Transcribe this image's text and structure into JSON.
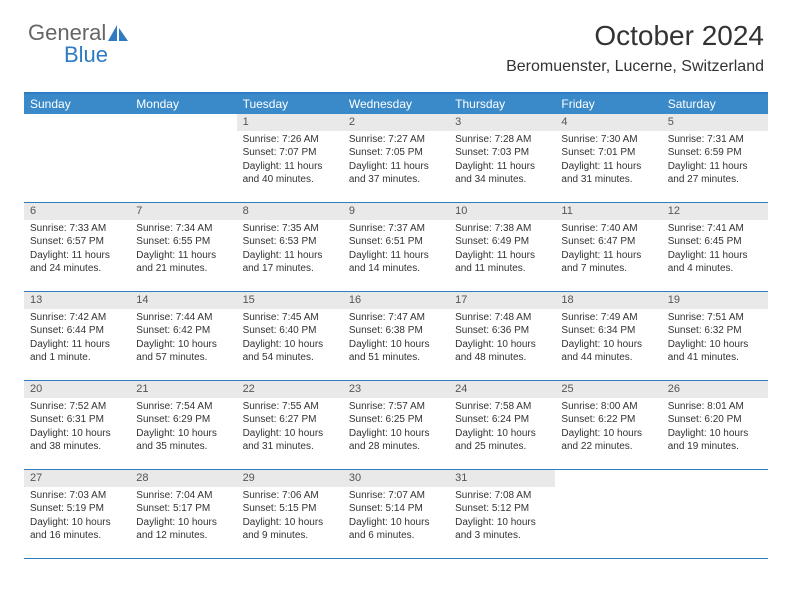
{
  "logo": {
    "text_general": "General",
    "text_blue": "Blue",
    "icon_color": "#2e7bc4"
  },
  "title": "October 2024",
  "location": "Beromuenster, Lucerne, Switzerland",
  "colors": {
    "header_bar": "#3a8ac9",
    "border": "#2e7bc4",
    "daynum_bg": "#e9e9e9",
    "page_bg": "#ffffff",
    "text": "#333333"
  },
  "weekdays": [
    "Sunday",
    "Monday",
    "Tuesday",
    "Wednesday",
    "Thursday",
    "Friday",
    "Saturday"
  ],
  "weeks": [
    [
      null,
      null,
      {
        "num": "1",
        "sunrise": "7:26 AM",
        "sunset": "7:07 PM",
        "daylight": "11 hours and 40 minutes."
      },
      {
        "num": "2",
        "sunrise": "7:27 AM",
        "sunset": "7:05 PM",
        "daylight": "11 hours and 37 minutes."
      },
      {
        "num": "3",
        "sunrise": "7:28 AM",
        "sunset": "7:03 PM",
        "daylight": "11 hours and 34 minutes."
      },
      {
        "num": "4",
        "sunrise": "7:30 AM",
        "sunset": "7:01 PM",
        "daylight": "11 hours and 31 minutes."
      },
      {
        "num": "5",
        "sunrise": "7:31 AM",
        "sunset": "6:59 PM",
        "daylight": "11 hours and 27 minutes."
      }
    ],
    [
      {
        "num": "6",
        "sunrise": "7:33 AM",
        "sunset": "6:57 PM",
        "daylight": "11 hours and 24 minutes."
      },
      {
        "num": "7",
        "sunrise": "7:34 AM",
        "sunset": "6:55 PM",
        "daylight": "11 hours and 21 minutes."
      },
      {
        "num": "8",
        "sunrise": "7:35 AM",
        "sunset": "6:53 PM",
        "daylight": "11 hours and 17 minutes."
      },
      {
        "num": "9",
        "sunrise": "7:37 AM",
        "sunset": "6:51 PM",
        "daylight": "11 hours and 14 minutes."
      },
      {
        "num": "10",
        "sunrise": "7:38 AM",
        "sunset": "6:49 PM",
        "daylight": "11 hours and 11 minutes."
      },
      {
        "num": "11",
        "sunrise": "7:40 AM",
        "sunset": "6:47 PM",
        "daylight": "11 hours and 7 minutes."
      },
      {
        "num": "12",
        "sunrise": "7:41 AM",
        "sunset": "6:45 PM",
        "daylight": "11 hours and 4 minutes."
      }
    ],
    [
      {
        "num": "13",
        "sunrise": "7:42 AM",
        "sunset": "6:44 PM",
        "daylight": "11 hours and 1 minute."
      },
      {
        "num": "14",
        "sunrise": "7:44 AM",
        "sunset": "6:42 PM",
        "daylight": "10 hours and 57 minutes."
      },
      {
        "num": "15",
        "sunrise": "7:45 AM",
        "sunset": "6:40 PM",
        "daylight": "10 hours and 54 minutes."
      },
      {
        "num": "16",
        "sunrise": "7:47 AM",
        "sunset": "6:38 PM",
        "daylight": "10 hours and 51 minutes."
      },
      {
        "num": "17",
        "sunrise": "7:48 AM",
        "sunset": "6:36 PM",
        "daylight": "10 hours and 48 minutes."
      },
      {
        "num": "18",
        "sunrise": "7:49 AM",
        "sunset": "6:34 PM",
        "daylight": "10 hours and 44 minutes."
      },
      {
        "num": "19",
        "sunrise": "7:51 AM",
        "sunset": "6:32 PM",
        "daylight": "10 hours and 41 minutes."
      }
    ],
    [
      {
        "num": "20",
        "sunrise": "7:52 AM",
        "sunset": "6:31 PM",
        "daylight": "10 hours and 38 minutes."
      },
      {
        "num": "21",
        "sunrise": "7:54 AM",
        "sunset": "6:29 PM",
        "daylight": "10 hours and 35 minutes."
      },
      {
        "num": "22",
        "sunrise": "7:55 AM",
        "sunset": "6:27 PM",
        "daylight": "10 hours and 31 minutes."
      },
      {
        "num": "23",
        "sunrise": "7:57 AM",
        "sunset": "6:25 PM",
        "daylight": "10 hours and 28 minutes."
      },
      {
        "num": "24",
        "sunrise": "7:58 AM",
        "sunset": "6:24 PM",
        "daylight": "10 hours and 25 minutes."
      },
      {
        "num": "25",
        "sunrise": "8:00 AM",
        "sunset": "6:22 PM",
        "daylight": "10 hours and 22 minutes."
      },
      {
        "num": "26",
        "sunrise": "8:01 AM",
        "sunset": "6:20 PM",
        "daylight": "10 hours and 19 minutes."
      }
    ],
    [
      {
        "num": "27",
        "sunrise": "7:03 AM",
        "sunset": "5:19 PM",
        "daylight": "10 hours and 16 minutes."
      },
      {
        "num": "28",
        "sunrise": "7:04 AM",
        "sunset": "5:17 PM",
        "daylight": "10 hours and 12 minutes."
      },
      {
        "num": "29",
        "sunrise": "7:06 AM",
        "sunset": "5:15 PM",
        "daylight": "10 hours and 9 minutes."
      },
      {
        "num": "30",
        "sunrise": "7:07 AM",
        "sunset": "5:14 PM",
        "daylight": "10 hours and 6 minutes."
      },
      {
        "num": "31",
        "sunrise": "7:08 AM",
        "sunset": "5:12 PM",
        "daylight": "10 hours and 3 minutes."
      },
      null,
      null
    ]
  ],
  "labels": {
    "sunrise_prefix": "Sunrise: ",
    "sunset_prefix": "Sunset: ",
    "daylight_prefix": "Daylight: "
  }
}
